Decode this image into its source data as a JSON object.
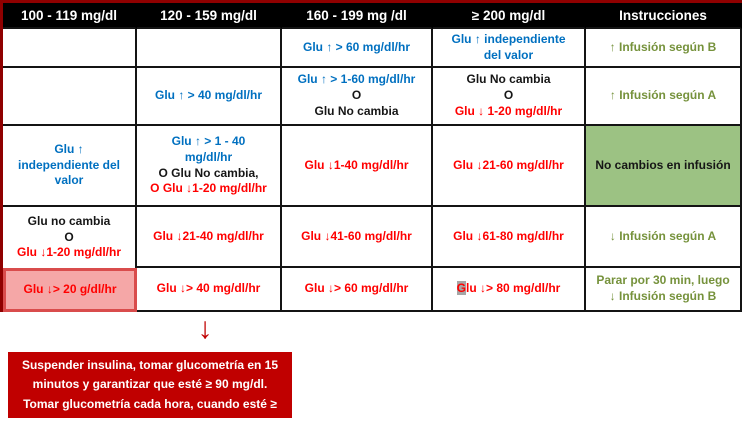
{
  "colors": {
    "blue": "#0070c0",
    "red": "#ff0000",
    "black": "#161616",
    "green": "#76923c",
    "white": "#ffffff",
    "header_bg": "#000000",
    "green_cell_bg": "#9cc283",
    "pink_cell_bg": "#f5a7a7",
    "pink_cell_border": "#d94c4c",
    "dark_red": "#c00000",
    "outer_border_red": "#8f0000",
    "gray_highlight": "#a6a6a6"
  },
  "table": {
    "headers": [
      "100 - 119 mg/dl",
      "120 - 159 mg/dl",
      "160 - 199 mg /dl",
      "≥ 200 mg/dl",
      "Instrucciones"
    ],
    "rows": [
      {
        "cells": [
          {
            "lines": []
          },
          {
            "lines": []
          },
          {
            "lines": [
              [
                {
                  "t": "Glu ↑ > 60 mg/dl/hr",
                  "c": "blue"
                }
              ]
            ]
          },
          {
            "lines": [
              [
                {
                  "t": "Glu ↑ independiente",
                  "c": "blue"
                }
              ],
              [
                {
                  "t": "del valor",
                  "c": "blue"
                }
              ]
            ]
          },
          {
            "lines": [
              [
                {
                  "t": "↑ Infusión según B",
                  "c": "green"
                }
              ]
            ]
          }
        ]
      },
      {
        "cells": [
          {
            "lines": []
          },
          {
            "lines": [
              [
                {
                  "t": "Glu ↑ > 40 mg/dl/hr",
                  "c": "blue"
                }
              ]
            ]
          },
          {
            "lines": [
              [
                {
                  "t": "Glu ↑ > 1-60 mg/dl/hr",
                  "c": "blue"
                }
              ],
              [
                {
                  "t": "O",
                  "c": "black"
                }
              ],
              [
                {
                  "t": "Glu No cambia",
                  "c": "black"
                }
              ]
            ]
          },
          {
            "lines": [
              [
                {
                  "t": "Glu No cambia",
                  "c": "black"
                }
              ],
              [
                {
                  "t": "O",
                  "c": "black"
                }
              ],
              [
                {
                  "t": "Glu ↓ 1-20 mg/dl/hr",
                  "c": "red"
                }
              ]
            ]
          },
          {
            "lines": [
              [
                {
                  "t": "↑ Infusión según A",
                  "c": "green"
                }
              ]
            ]
          }
        ]
      },
      {
        "cells": [
          {
            "lines": [
              [
                {
                  "t": "Glu ↑",
                  "c": "blue"
                }
              ],
              [
                {
                  "t": "independiente del",
                  "c": "blue"
                }
              ],
              [
                {
                  "t": "valor",
                  "c": "blue"
                }
              ]
            ]
          },
          {
            "lines": [
              [
                {
                  "t": "Glu ↑ > 1 - 40",
                  "c": "blue"
                }
              ],
              [
                {
                  "t": "mg/dl/hr",
                  "c": "blue"
                }
              ],
              [
                {
                  "t": "O Glu No cambia,",
                  "c": "black"
                }
              ],
              [
                {
                  "t": "O Glu ↓1-20 mg/dl/hr",
                  "c": "red"
                }
              ]
            ]
          },
          {
            "lines": [
              [
                {
                  "t": "Glu ↓1-40 mg/dl/hr",
                  "c": "red"
                }
              ]
            ]
          },
          {
            "lines": [
              [
                {
                  "t": "Glu ↓21-60 mg/dl/hr",
                  "c": "red"
                }
              ]
            ]
          },
          {
            "bg": "green",
            "lines": [
              [
                {
                  "t": "No cambios en infusión",
                  "c": "black"
                }
              ]
            ]
          }
        ]
      },
      {
        "cells": [
          {
            "lines": [
              [
                {
                  "t": "Glu no cambia",
                  "c": "black"
                }
              ],
              [
                {
                  "t": "O",
                  "c": "black"
                }
              ],
              [
                {
                  "t": "Glu ↓1-20 mg/dl/hr",
                  "c": "red"
                }
              ]
            ]
          },
          {
            "lines": [
              [
                {
                  "t": "Glu ↓21-40 mg/dl/hr",
                  "c": "red"
                }
              ]
            ]
          },
          {
            "lines": [
              [
                {
                  "t": "Glu ↓41-60 mg/dl/hr",
                  "c": "red"
                }
              ]
            ]
          },
          {
            "lines": [
              [
                {
                  "t": "Glu ↓61-80 mg/dl/hr",
                  "c": "red"
                }
              ]
            ]
          },
          {
            "lines": [
              [
                {
                  "t": "↓ Infusión según A",
                  "c": "green"
                }
              ]
            ]
          }
        ]
      },
      {
        "cells": [
          {
            "bg": "pink",
            "lines": [
              [
                {
                  "t": "Glu ↓> 20 g/dl/hr",
                  "c": "red"
                }
              ]
            ]
          },
          {
            "lines": [
              [
                {
                  "t": "Glu ↓> 40 mg/dl/hr",
                  "c": "red"
                }
              ]
            ]
          },
          {
            "lines": [
              [
                {
                  "t": "Glu ↓> 60 mg/dl/hr",
                  "c": "red"
                }
              ]
            ]
          },
          {
            "lines": [
              [
                {
                  "t": "G",
                  "c": "red",
                  "hl": true
                },
                {
                  "t": "lu ↓> 80 mg/dl/hr",
                  "c": "red"
                }
              ]
            ]
          },
          {
            "lines": [
              [
                {
                  "t": "Parar por 30 min, luego",
                  "c": "green"
                }
              ],
              [
                {
                  "t": "↓ Infusión según B",
                  "c": "green"
                }
              ]
            ]
          }
        ]
      }
    ]
  },
  "footer": {
    "arrow_glyph": "↓",
    "alert_lines": [
      "Suspender insulina, tomar glucometría en 15",
      "minutos y garantizar que esté ≥ 90 mg/dl.",
      "Tomar glucometría cada hora, cuando esté ≥"
    ]
  }
}
